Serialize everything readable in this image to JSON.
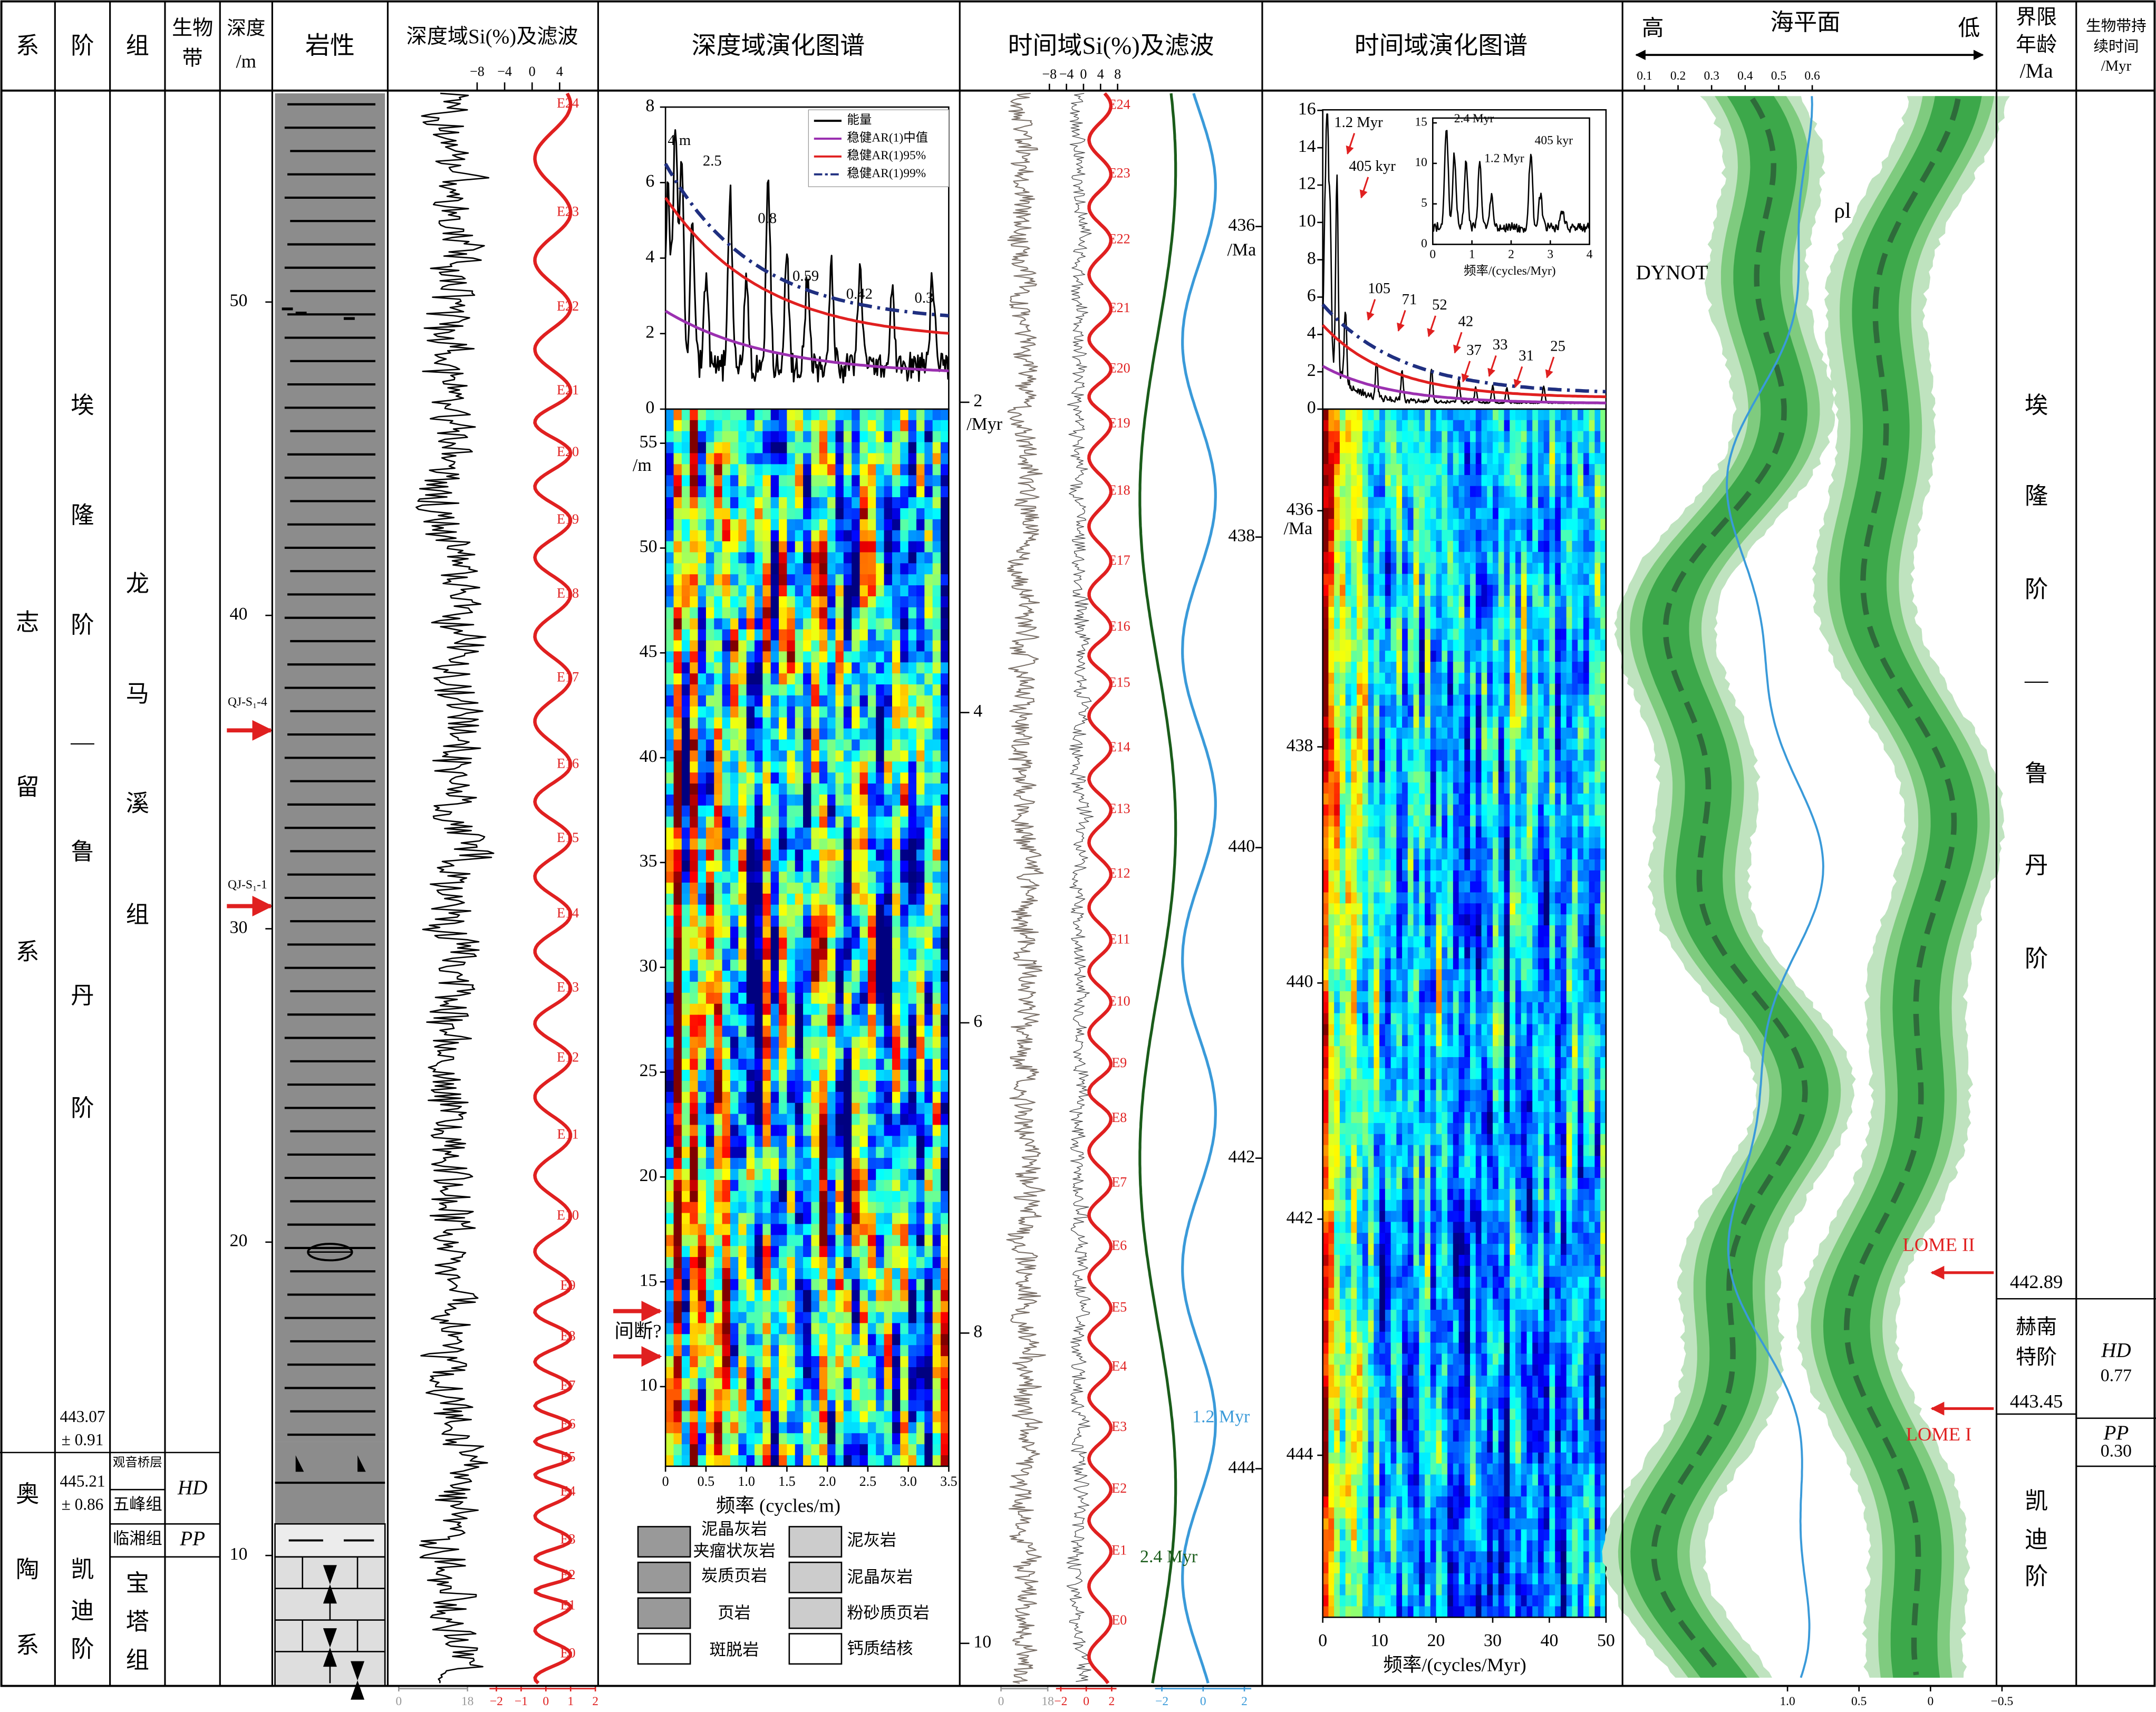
{
  "header": {
    "system": "系",
    "stage": "阶",
    "formation": "组",
    "biozone": [
      "生物",
      "带"
    ],
    "depth": [
      "深度",
      "/m"
    ],
    "lithology": "岩性",
    "depth_si": "深度域Si(%)及滤波",
    "depth_spectrum": "深度域演化图谱",
    "time_si": "时间域Si(%)及滤波",
    "time_spectrum": "时间域演化图谱",
    "sea_level": "海平面",
    "high": "高",
    "low": "低",
    "boundary_age": [
      "界限",
      "年龄",
      "/Ma"
    ],
    "biozone_duration": [
      "生物带持",
      "续时间",
      "/Myr"
    ]
  },
  "strat": {
    "silurian": [
      "志",
      "留",
      "系"
    ],
    "ordovician": [
      "奥",
      "陶",
      "系"
    ],
    "aeronian_rhuddanian": [
      "埃",
      "隆",
      "阶",
      "—",
      "鲁",
      "丹",
      "阶"
    ],
    "katian": [
      "凯",
      "迪",
      "阶"
    ],
    "longmaxi": [
      "龙",
      "马",
      "溪",
      "组"
    ],
    "baota": [
      "宝",
      "塔",
      "组"
    ],
    "guanyinqiao": "观音桥层",
    "wufeng": "五峰组",
    "linxiang": "临湘组",
    "hd": "HD",
    "pp": "PP",
    "age_upper": [
      "443.07",
      "± 0.91"
    ],
    "age_lower": [
      "445.21",
      "± 0.86"
    ]
  },
  "depth": {
    "ticks": [
      10,
      20,
      30,
      40,
      50
    ],
    "samples": [
      "QJ-S₁-4",
      "QJ-S₁-1"
    ]
  },
  "depth_si": {
    "top_ticks": [
      {
        "value": -8,
        "label": "−8"
      },
      {
        "value": -4,
        "label": "−4"
      },
      0,
      4
    ],
    "si_ticks": [
      0,
      18
    ],
    "filter_ticks": [
      {
        "value": -2,
        "label": "−2"
      },
      {
        "value": -1,
        "label": "−1"
      },
      0,
      1,
      2
    ],
    "cycles": [
      "E0",
      "E1",
      "E2",
      "E3",
      "E4",
      "E5",
      "E6",
      "E7",
      "E8",
      "E9",
      "E10",
      "E11",
      "E12",
      "E13",
      "E14",
      "E15",
      "E16",
      "E17",
      "E18",
      "E19",
      "E20",
      "E21",
      "E22",
      "E23",
      "E24"
    ]
  },
  "depth_spectrum": {
    "power_ticks": [
      0,
      2,
      4,
      6,
      8
    ],
    "legend": [
      "能量",
      "稳健AR(1)中值",
      "稳健AR(1)95%",
      "稳健AR(1)99%"
    ],
    "peaks": [
      "4 m",
      "2.5",
      "0.8",
      "0.59",
      "0.42",
      "0.3"
    ],
    "depth_ticks": [
      10,
      15,
      20,
      25,
      30,
      35,
      40,
      45,
      50,
      55
    ],
    "depth_unit": "/m",
    "freq_ticks": [
      0,
      0.5,
      {
        "value": 1,
        "label": "1.0"
      },
      1.5,
      {
        "value": 2,
        "label": "2.0"
      },
      2.5,
      {
        "value": 3,
        "label": "3.0"
      },
      3.5
    ],
    "x_label": "频率 (cycles/m)",
    "myr_ticks": [
      2,
      4,
      6,
      8,
      10
    ],
    "myr_unit": "/Myr",
    "hiatus": "间断?"
  },
  "lith_legend": [
    [
      "泥晶灰岩",
      "夹瘤状灰岩"
    ],
    [
      "泥灰岩"
    ],
    [
      "炭质页岩"
    ],
    [
      "泥晶灰岩"
    ],
    [
      "页岩"
    ],
    [
      "粉砂质页岩"
    ],
    [
      "斑脱岩"
    ],
    [
      "钙质结核"
    ]
  ],
  "time_si": {
    "top_ticks": [
      {
        "value": -8,
        "label": "−8"
      },
      {
        "value": -4,
        "label": "−4"
      },
      0,
      4,
      8
    ],
    "si_ticks": [
      0,
      18
    ],
    "filter_ticks": [
      {
        "value": -2,
        "label": "−2"
      },
      0,
      2
    ],
    "long_ticks": [
      {
        "value": -2,
        "label": "−2"
      },
      0,
      2
    ],
    "cycles": [
      "E0",
      "E1",
      "E2",
      "E3",
      "E4",
      "E5",
      "E6",
      "E7",
      "E8",
      "E9",
      "E10",
      "E11",
      "E12",
      "E13",
      "E14",
      "E15",
      "E16",
      "E17",
      "E18",
      "E19",
      "E20",
      "E21",
      "E22",
      "E23",
      "E24"
    ],
    "long_labels": [
      "1.2 Myr",
      "2.4 Myr"
    ],
    "age_ticks": [
      436,
      438,
      440,
      442,
      444
    ],
    "age_unit": "/Ma"
  },
  "time_spectrum": {
    "power_ticks": [
      0,
      2,
      4,
      6,
      8,
      10,
      12,
      14,
      16
    ],
    "peaks": [
      "1.2 Myr",
      "405 kyr",
      "105",
      "71",
      "52",
      "42",
      "37",
      "33",
      "31",
      "25"
    ],
    "inset_y_ticks": [
      0,
      5,
      10,
      15
    ],
    "inset_x_ticks": [
      0,
      1,
      2,
      3,
      4
    ],
    "inset_peaks": [
      "2.4 Myr",
      "1.2 Myr",
      "405 kyr"
    ],
    "inset_x_label": "频率/(cycles/Myr)",
    "age_ticks": [
      436,
      438,
      440,
      442,
      444
    ],
    "age_unit": "/Ma",
    "freq_ticks": [
      0,
      10,
      20,
      30,
      40,
      50
    ],
    "x_label": "频率/(cycles/Myr)"
  },
  "sea_level": {
    "top_ticks": [
      0.1,
      0.2,
      0.3,
      0.4,
      0.5,
      0.6
    ],
    "bottom_ticks": [
      {
        "value": 1,
        "label": "1.0"
      },
      0.5,
      0,
      {
        "value": -0.5,
        "label": "−0.5"
      }
    ],
    "dynot": "DYNOT",
    "rho": "ρl",
    "events": [
      "LOME II",
      "LOME I"
    ]
  },
  "boundaries": {
    "ages": [
      442.89,
      443.45
    ],
    "hirnantian": [
      "赫南",
      "特阶"
    ],
    "upper_stage": [
      "埃",
      "隆",
      "阶",
      "—",
      "鲁",
      "丹",
      "阶"
    ],
    "katian": [
      "凯",
      "迪",
      "阶"
    ],
    "durations": [
      {
        "zone": "HD",
        "value": 0.77
      },
      {
        "zone": "PP",
        "value": "0.30"
      }
    ]
  }
}
